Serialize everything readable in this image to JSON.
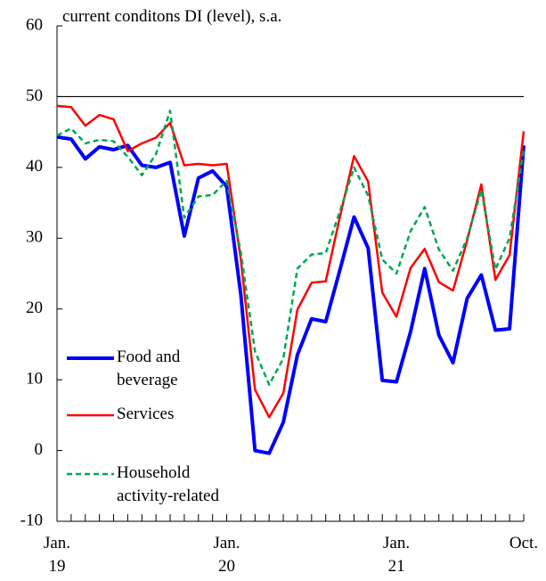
{
  "chart_data": {
    "type": "line",
    "title": "current conditons DI (level), s.a.",
    "categories": [
      "Jan.\n19",
      null,
      null,
      null,
      null,
      null,
      null,
      null,
      null,
      null,
      null,
      null,
      "Jan.\n20",
      null,
      null,
      null,
      null,
      null,
      null,
      null,
      null,
      null,
      null,
      null,
      "Jan.\n21",
      null,
      null,
      null,
      null,
      null,
      null,
      null,
      null,
      "Oct."
    ],
    "series": [
      {
        "name": "Food and\nbeverage",
        "color": "#0000ff",
        "dash": false,
        "width": 4,
        "values": [
          44.3,
          44,
          41.2,
          42.9,
          42.5,
          43.1,
          40.3,
          40,
          40.7,
          30.3,
          38.5,
          39.5,
          37.3,
          22,
          0,
          -0.4,
          4,
          13.5,
          18.6,
          18.2,
          25.5,
          33,
          28.6,
          9.9,
          9.7,
          16.8,
          25.7,
          16.3,
          12.4,
          21.5,
          24.8,
          17,
          17.2,
          43.1
        ]
      },
      {
        "name": "Services",
        "color": "#ff0000",
        "dash": false,
        "width": 2.5,
        "values": [
          48.7,
          48.5,
          45.9,
          47.4,
          46.8,
          42.3,
          43.4,
          44.2,
          46.3,
          40.3,
          40.5,
          40.3,
          40.5,
          27,
          8.6,
          4.7,
          8.1,
          19.9,
          23.7,
          23.9,
          33,
          41.6,
          38,
          22.3,
          18.9,
          25.8,
          28.5,
          23.8,
          22.6,
          29.7,
          37.6,
          24.1,
          27.6,
          45.1
        ]
      },
      {
        "name": "Household\nactivity-related",
        "color": "#00a651",
        "dash": true,
        "width": 2.5,
        "values": [
          44.5,
          45.5,
          43.4,
          43.9,
          43.7,
          41.5,
          38.9,
          41.9,
          48,
          32.9,
          35.9,
          36.1,
          38.1,
          28,
          14,
          9.3,
          13,
          25.7,
          27.7,
          27.9,
          33.8,
          40,
          36,
          27,
          25,
          31,
          34.4,
          28.4,
          25.4,
          30,
          36.8,
          25.6,
          30,
          42.5
        ]
      }
    ],
    "ylim": [
      -10,
      60
    ],
    "yticks": [
      -10,
      0,
      10,
      20,
      30,
      40,
      50,
      60
    ],
    "reference_line": 50,
    "grid": false,
    "legend": "inside-left"
  }
}
